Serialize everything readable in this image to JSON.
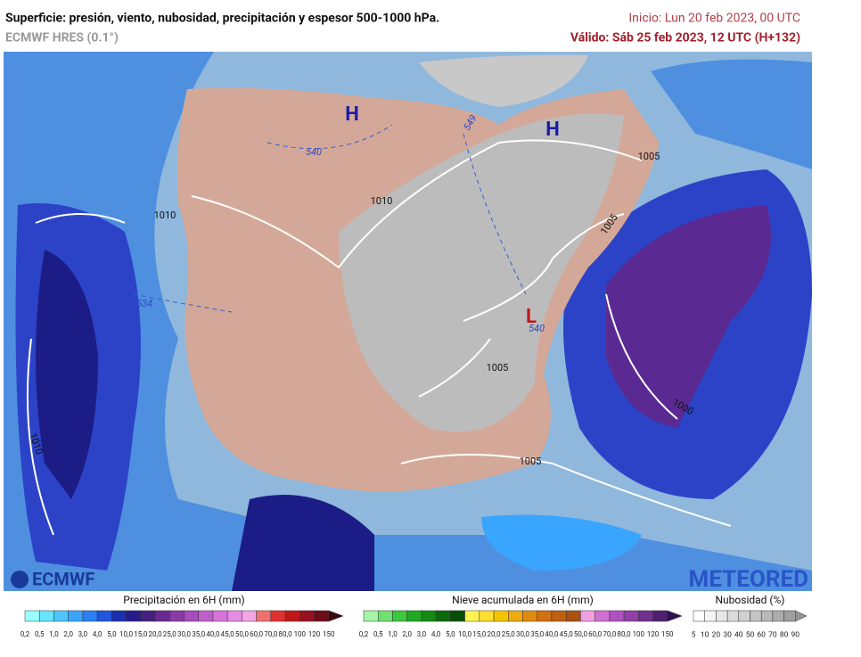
{
  "header": {
    "title": "Superficie: presión, viento, nubosidad, precipitación y espesor 500-1000 hPa.",
    "model": "ECMWF HRES (0.1°)",
    "init": "Inicio: Lun 20 feb 2023, 00 UTC",
    "valid": "Válido: Sáb 25 feb 2023, 12 UTC (H+132)"
  },
  "map": {
    "pressure_centers": [
      "H",
      "H",
      "L"
    ],
    "isobar_labels": [
      "1010",
      "1010",
      "1005",
      "1005",
      "1005",
      "1000",
      "1005",
      "1010"
    ],
    "thickness_labels": [
      "540",
      "549",
      "534",
      "540"
    ]
  },
  "logos": [
    "ECMWF",
    "METEORED"
  ],
  "legends": [
    {
      "title": "Precipitación en 6H (mm)",
      "labels": [
        "0,2",
        "0,5",
        "1,0",
        "2,0",
        "3,0",
        "4,0",
        "5,0",
        "10,0",
        "15,0",
        "20,0",
        "25,0",
        "30,0",
        "35,0",
        "40,0",
        "45,0",
        "50,0",
        "60,0",
        "70,0",
        "80,0",
        "100",
        "120",
        "150"
      ],
      "colors": [
        "#99ffff",
        "#66e5ff",
        "#4dc6ff",
        "#3aa5ff",
        "#2b7ff0",
        "#2255dd",
        "#1a2fb0",
        "#271a8c",
        "#46207f",
        "#6a2a92",
        "#8a3aa8",
        "#a64cbd",
        "#c05fcc",
        "#d673d9",
        "#e68ce3",
        "#f2a6e6",
        "#f07070",
        "#e03030",
        "#c01818",
        "#9a1020",
        "#6e0c18",
        "#3c0810"
      ]
    },
    {
      "title": "Nieve acumulada en 6H (mm)",
      "labels": [
        "0,2",
        "0,5",
        "1,0",
        "2,0",
        "3,0",
        "4,0",
        "5,0",
        "10,0",
        "15,0",
        "20,0",
        "25,0",
        "30,0",
        "35,0",
        "40,0",
        "45,0",
        "50,0",
        "60,0",
        "70,0",
        "80,0",
        "100",
        "120",
        "150"
      ],
      "colors": [
        "#a6f5a6",
        "#70e070",
        "#3cc83c",
        "#22a822",
        "#128a12",
        "#0a6a0a",
        "#054f05",
        "#fff44f",
        "#ffe030",
        "#f5c400",
        "#eeaa10",
        "#e08a10",
        "#d07010",
        "#c06010",
        "#aa5010",
        "#f0a0e0",
        "#d070d0",
        "#b050c0",
        "#9040a8",
        "#703090",
        "#502070",
        "#301050"
      ]
    },
    {
      "title": "Nubosidad (%)",
      "labels": [
        "5",
        "10",
        "20",
        "30",
        "40",
        "50",
        "60",
        "70",
        "80",
        "90"
      ],
      "colors": [
        "#ffffff",
        "#f4f4f4",
        "#e8e8e8",
        "#dcdcdc",
        "#d0d0d0",
        "#c4c4c4",
        "#b8b8b8",
        "#acacac",
        "#a0a0a0",
        "#949494"
      ]
    }
  ]
}
